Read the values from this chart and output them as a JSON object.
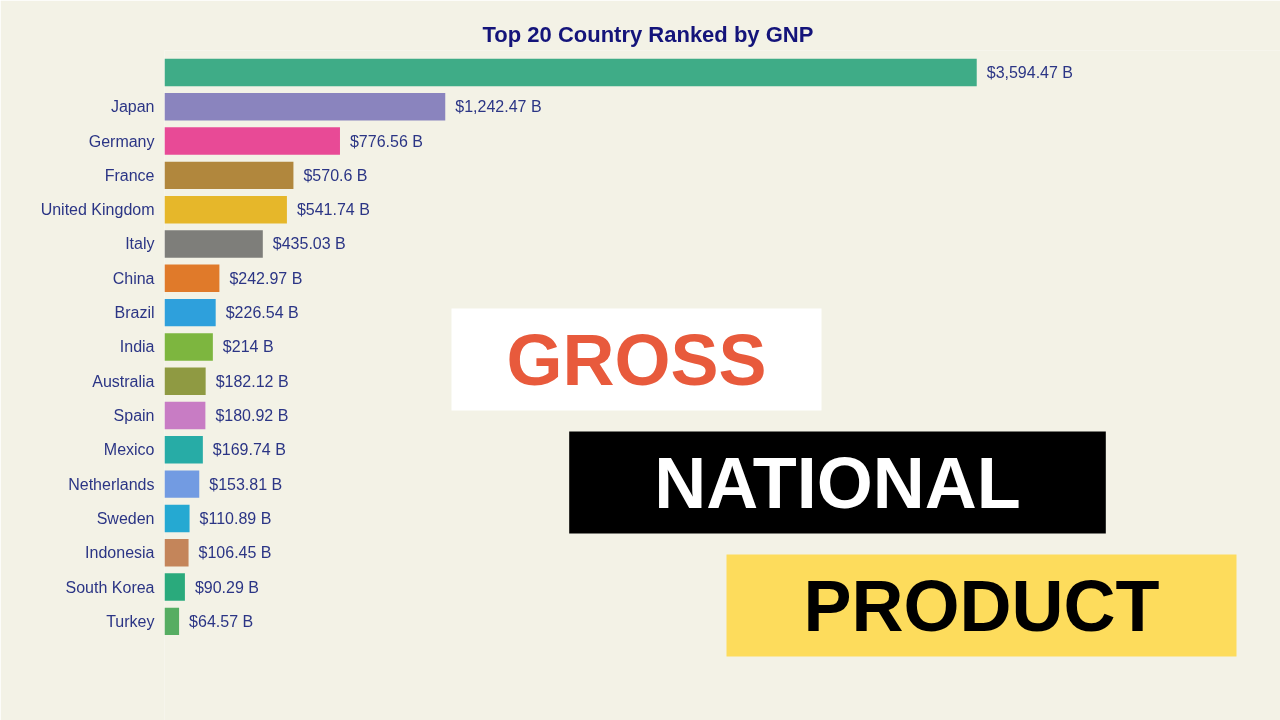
{
  "chart_data": {
    "type": "bar",
    "orientation": "horizontal",
    "title": "Top 20 Country Ranked by GNP",
    "categories": [
      null,
      "Japan",
      "Germany",
      "France",
      "United Kingdom",
      "Italy",
      "China",
      "Brazil",
      "India",
      "Australia",
      "Spain",
      "Mexico",
      "Netherlands",
      "Sweden",
      "Indonesia",
      "South Korea",
      "Turkey"
    ],
    "values": [
      3594.47,
      1242.47,
      776.56,
      570.6,
      541.74,
      435.03,
      242.97,
      226.54,
      214,
      182.12,
      180.92,
      169.74,
      153.81,
      110.89,
      106.45,
      90.29,
      64.57
    ],
    "value_labels": [
      "$3,594.47 B",
      "$1,242.47 B",
      "$776.56 B",
      "$570.6 B",
      "$541.74 B",
      "$435.03 B",
      "$242.97 B",
      "$226.54 B",
      "$214 B",
      "$182.12 B",
      "$180.92 B",
      "$169.74 B",
      "$153.81 B",
      "$110.89 B",
      "$106.45 B",
      "$90.29 B",
      "$64.57 B"
    ],
    "colors": [
      "#3fac87",
      "#8a84be",
      "#e84a96",
      "#b1873d",
      "#e6b72a",
      "#7e7e7a",
      "#e07a2a",
      "#2ea0dc",
      "#7db63f",
      "#8f9a42",
      "#c87cc4",
      "#27aca6",
      "#729be2",
      "#25a9d2",
      "#c4855a",
      "#2aaa7c",
      "#56ad62"
    ],
    "tick_labels": "y",
    "annotations": [
      "GROSS",
      "NATIONAL",
      "PRODUCT"
    ]
  }
}
